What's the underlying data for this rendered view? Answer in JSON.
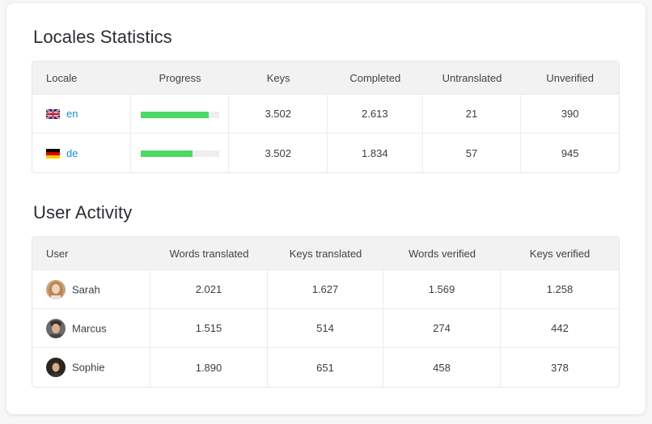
{
  "locales": {
    "title": "Locales Statistics",
    "headers": [
      "Locale",
      "Progress",
      "Keys",
      "Completed",
      "Untranslated",
      "Unverified"
    ],
    "rows": [
      {
        "code": "en",
        "flag": "gb-flag-icon",
        "progress": 0.87,
        "keys": "3.502",
        "completed": "2.613",
        "untranslated": "21",
        "unverified": "390"
      },
      {
        "code": "de",
        "flag": "de-flag-icon",
        "progress": 0.66,
        "keys": "3.502",
        "completed": "1.834",
        "untranslated": "57",
        "unverified": "945"
      }
    ],
    "progress_color": "#4cd964",
    "link_color": "#1a8fd1"
  },
  "activity": {
    "title": "User Activity",
    "headers": [
      "User",
      "Words translated",
      "Keys translated",
      "Words verified",
      "Keys verified"
    ],
    "rows": [
      {
        "name": "Sarah",
        "words_translated": "2.021",
        "keys_translated": "1.627",
        "words_verified": "1.569",
        "keys_verified": "1.258"
      },
      {
        "name": "Marcus",
        "words_translated": "1.515",
        "keys_translated": "514",
        "words_verified": "274",
        "keys_verified": "442"
      },
      {
        "name": "Sophie",
        "words_translated": "1.890",
        "keys_translated": "651",
        "words_verified": "458",
        "keys_verified": "378"
      }
    ]
  }
}
